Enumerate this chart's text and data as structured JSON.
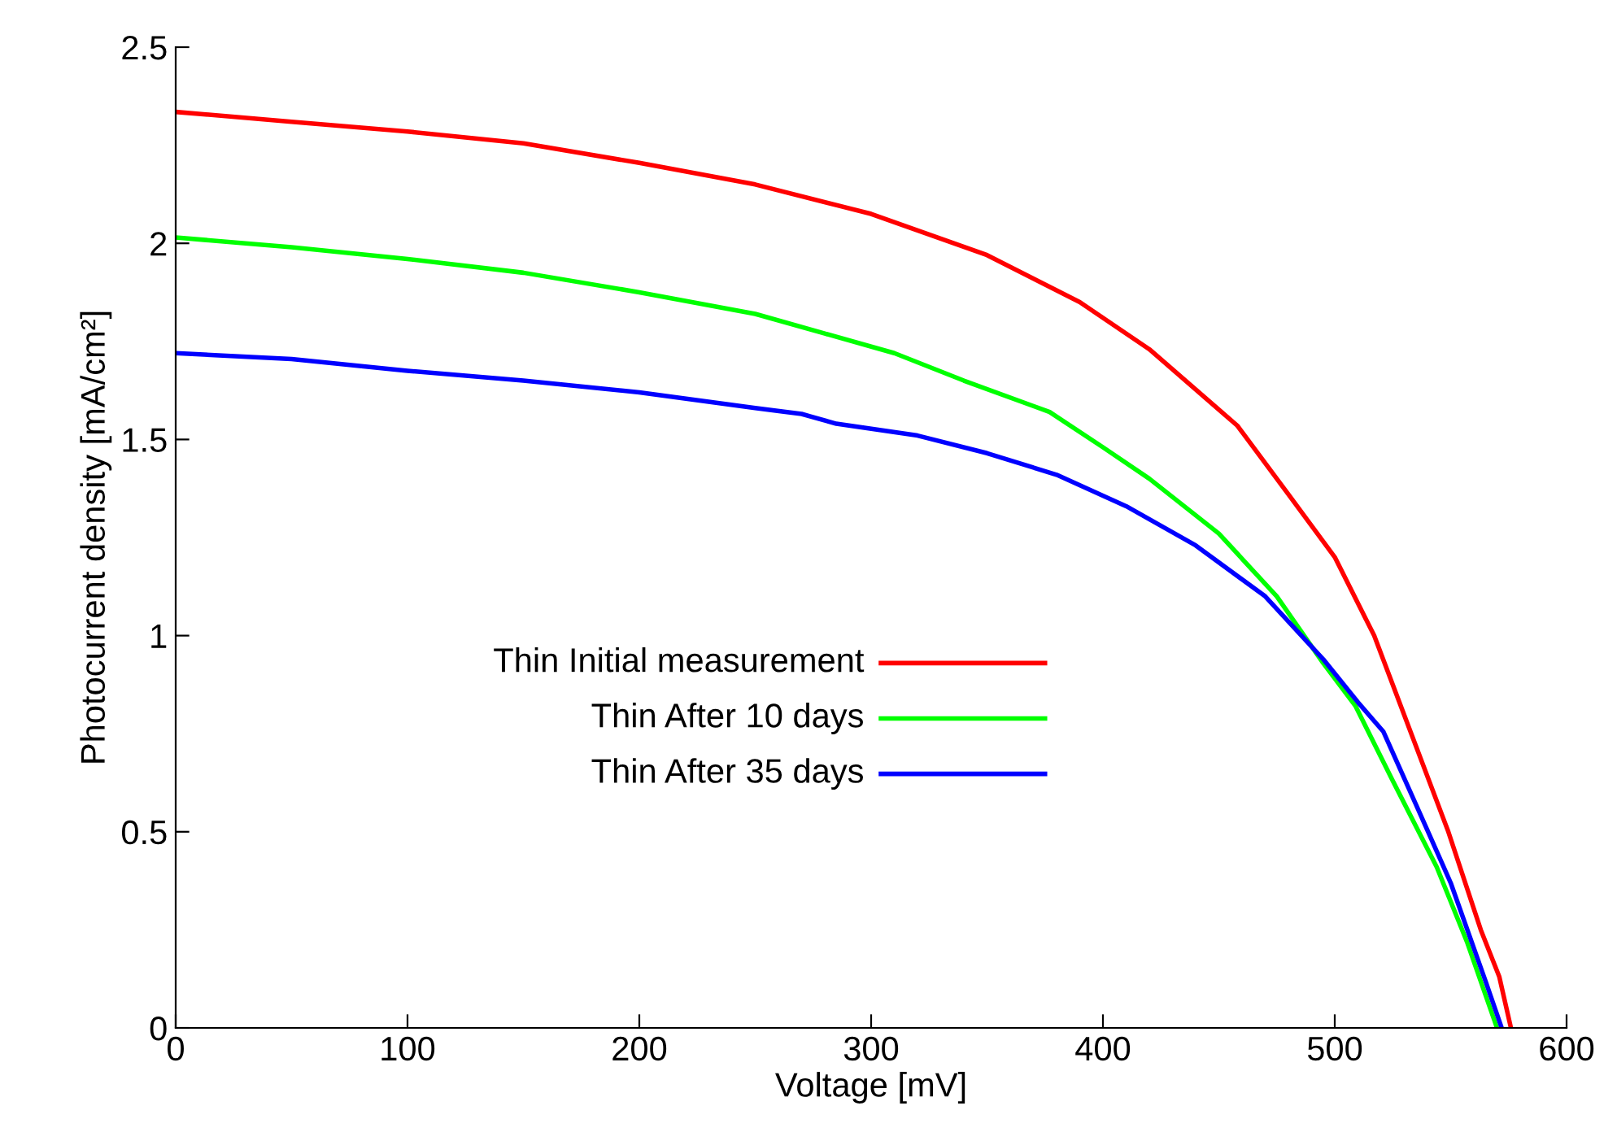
{
  "chart_data": {
    "type": "line",
    "xlabel": "Voltage [mV]",
    "ylabel": "Photocurrent density [mA/cm²]",
    "xlim": [
      0,
      600
    ],
    "xticks": [
      0,
      100,
      200,
      300,
      400,
      500,
      600
    ],
    "ylim": [
      0,
      2.5
    ],
    "yticks": [
      0,
      0.5,
      1,
      1.5,
      2,
      2.5
    ],
    "grid": false,
    "legend": "left",
    "marker": "none",
    "line_style": "solid",
    "series": [
      {
        "name": "Thin Initial measurement",
        "color": "#ff0000",
        "x": [
          0,
          50,
          100,
          150,
          200,
          250,
          300,
          350,
          390,
          420,
          458,
          480,
          500,
          517,
          549,
          563,
          571,
          576
        ],
        "values": [
          2.335,
          2.31,
          2.285,
          2.255,
          2.205,
          2.15,
          2.075,
          1.97,
          1.85,
          1.73,
          1.535,
          1.36,
          1.2,
          1.0,
          0.5,
          0.25,
          0.13,
          0
        ]
      },
      {
        "name": "Thin After 10 days",
        "color": "#00ff00",
        "x": [
          0,
          50,
          100,
          150,
          200,
          250,
          280,
          310,
          340,
          377,
          400,
          420,
          450,
          475,
          495,
          509,
          525,
          544,
          557,
          570
        ],
        "values": [
          2.015,
          1.99,
          1.96,
          1.925,
          1.875,
          1.82,
          1.77,
          1.72,
          1.65,
          1.57,
          1.48,
          1.4,
          1.26,
          1.1,
          0.93,
          0.82,
          0.63,
          0.41,
          0.22,
          0
        ]
      },
      {
        "name": "Thin After 35 days",
        "color": "#0000ff",
        "x": [
          0,
          50,
          100,
          150,
          200,
          250,
          270,
          285,
          320,
          350,
          380,
          410,
          440,
          470,
          495,
          510,
          521,
          535,
          550,
          565,
          572
        ],
        "values": [
          1.72,
          1.705,
          1.675,
          1.65,
          1.62,
          1.58,
          1.565,
          1.54,
          1.51,
          1.465,
          1.41,
          1.33,
          1.23,
          1.1,
          0.94,
          0.83,
          0.755,
          0.57,
          0.37,
          0.12,
          0
        ]
      }
    ]
  }
}
